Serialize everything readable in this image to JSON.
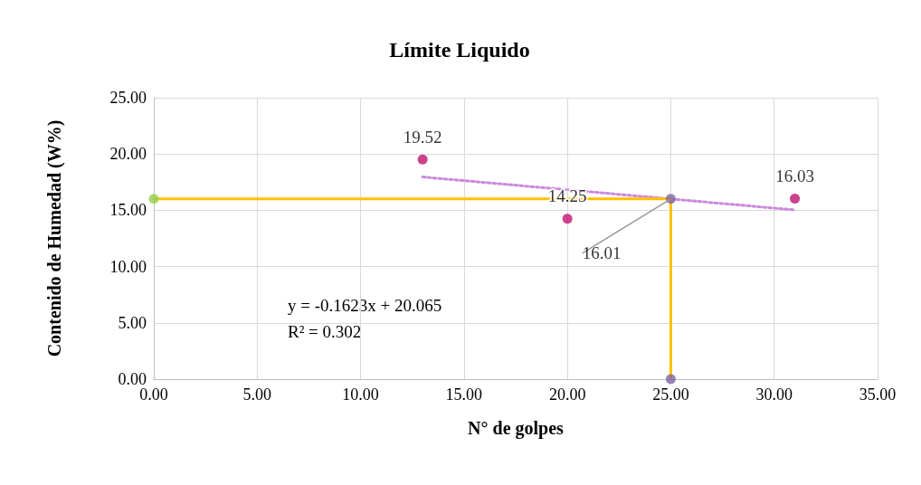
{
  "chart_data": {
    "type": "scatter",
    "title": "Límite Liquido",
    "xlabel": "N° de golpes",
    "ylabel": "Contenido de Humedad (W%)",
    "xlim": [
      0,
      35
    ],
    "xticks": [
      {
        "value": 0,
        "label": "0.00"
      },
      {
        "value": 5,
        "label": "5.00"
      },
      {
        "value": 10,
        "label": "10.00"
      },
      {
        "value": 15,
        "label": "15.00"
      },
      {
        "value": 20,
        "label": "20.00"
      },
      {
        "value": 25,
        "label": "25.00"
      },
      {
        "value": 30,
        "label": "30.00"
      },
      {
        "value": 35,
        "label": "35.00"
      }
    ],
    "ylim": [
      0,
      25
    ],
    "yticks": [
      {
        "value": 0,
        "label": "0.00"
      },
      {
        "value": 5,
        "label": "5.00"
      },
      {
        "value": 10,
        "label": "10.00"
      },
      {
        "value": 15,
        "label": "15.00"
      },
      {
        "value": 20,
        "label": "20.00"
      },
      {
        "value": 25,
        "label": "25.00"
      }
    ],
    "grid": true,
    "marker": "circle",
    "series": [
      {
        "type": "line",
        "color": "#cc88dd",
        "line_style": "dotted",
        "marker": "none",
        "x": [
          13,
          31
        ],
        "values": [
          17.96,
          15.03
        ]
      },
      {
        "type": "line",
        "color": "#ffc000",
        "line_style": "solid",
        "marker": "none",
        "x": [
          0,
          25,
          25
        ],
        "values": [
          16.01,
          16.01,
          0
        ]
      },
      {
        "color": "#c0136f",
        "x": [
          13,
          20,
          31
        ],
        "values": [
          19.52,
          14.25,
          16.03
        ],
        "value_labels": [
          "19.52",
          "14.25",
          "16.03"
        ]
      },
      {
        "color": "#92d050",
        "x": [
          0
        ],
        "values": [
          16.01
        ]
      },
      {
        "color": "#8064a2",
        "x": [
          25,
          25
        ],
        "values": [
          16.01,
          0
        ]
      }
    ],
    "annotations": [
      "y = -0.1623x + 20.065",
      "R² = 0.302",
      {
        "text": "16.01",
        "x": 25,
        "y": 16.01
      }
    ]
  }
}
